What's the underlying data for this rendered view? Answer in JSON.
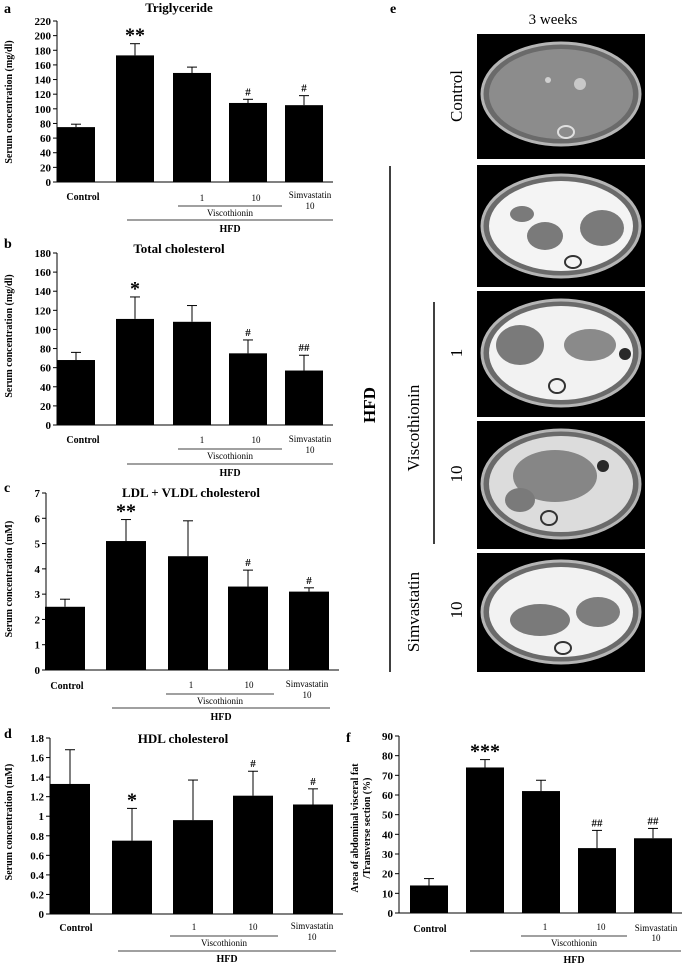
{
  "panel_letters": {
    "a": "a",
    "b": "b",
    "c": "c",
    "d": "d",
    "e": "e",
    "f": "f"
  },
  "group_labels": {
    "control": "Control",
    "dose1": "1",
    "dose10": "10",
    "simvastatin": "Simvastatin",
    "simvastatin_dose": "10",
    "viscothionin": "Viscothionin",
    "hfd": "HFD"
  },
  "colors": {
    "bar": "#000000",
    "background": "#ffffff",
    "ct_gray": "#8c8c8c",
    "ct_dark": "#2a2a2a"
  },
  "ct_panel": {
    "title": "3 weeks",
    "row_labels": {
      "control": "Control",
      "dose1": "1",
      "dose10": "10",
      "viscothionin": "Viscothionin",
      "simvastatin": "Simvastatin",
      "simvastatin_dose": "10",
      "hfd": "HFD"
    }
  },
  "chart_data": [
    {
      "id": "a",
      "type": "bar",
      "title": "Triglyceride",
      "ylabel": "Serum concentration (mg/dl)",
      "ylim": [
        0,
        220
      ],
      "yticks": [
        "0",
        "20",
        "40",
        "60",
        "80",
        "100",
        "120",
        "140",
        "160",
        "180",
        "200",
        "220"
      ],
      "categories": [
        "Control",
        "HFD",
        "Viscothionin 1",
        "Viscothionin 10",
        "Simvastatin 10"
      ],
      "values": [
        75,
        173,
        149,
        108,
        105
      ],
      "errors": [
        4,
        16,
        8,
        5,
        13
      ],
      "significance": [
        "",
        "**",
        "",
        "#",
        "#"
      ],
      "grid": false
    },
    {
      "id": "b",
      "type": "bar",
      "title": "Total cholesterol",
      "ylabel": "Serum concentration (mg/dl)",
      "ylim": [
        0,
        180
      ],
      "yticks": [
        "0",
        "20",
        "40",
        "60",
        "80",
        "100",
        "120",
        "140",
        "160",
        "180"
      ],
      "categories": [
        "Control",
        "HFD",
        "Viscothionin 1",
        "Viscothionin 10",
        "Simvastatin 10"
      ],
      "values": [
        68,
        111,
        108,
        75,
        57
      ],
      "errors": [
        8,
        23,
        17,
        14,
        16
      ],
      "significance": [
        "",
        "*",
        "",
        "#",
        "##"
      ],
      "grid": false
    },
    {
      "id": "c",
      "type": "bar",
      "title": "LDL + VLDL cholesterol",
      "ylabel": "Serum concentration (mM)",
      "ylim": [
        0,
        7
      ],
      "yticks": [
        "0",
        "1",
        "2",
        "3",
        "4",
        "5",
        "6",
        "7"
      ],
      "categories": [
        "Control",
        "HFD",
        "Viscothionin 1",
        "Viscothionin 10",
        "Simvastatin 10"
      ],
      "values": [
        2.5,
        5.1,
        4.5,
        3.3,
        3.1
      ],
      "errors": [
        0.3,
        0.85,
        1.4,
        0.65,
        0.15
      ],
      "significance": [
        "",
        "**",
        "",
        "#",
        "#"
      ],
      "grid": false
    },
    {
      "id": "d",
      "type": "bar",
      "title": "HDL cholesterol",
      "ylabel": "Serum concentration (mM)",
      "ylim": [
        0,
        1.8
      ],
      "yticks": [
        "0",
        "0.2",
        "0.4",
        "0.6",
        "0.8",
        "1",
        "1.2",
        "1.4",
        "1.6",
        "1.8"
      ],
      "categories": [
        "Control",
        "HFD",
        "Viscothionin 1",
        "Viscothionin 10",
        "Simvastatin 10"
      ],
      "values": [
        1.33,
        0.75,
        0.96,
        1.21,
        1.12
      ],
      "errors": [
        0.35,
        0.33,
        0.41,
        0.25,
        0.16
      ],
      "significance": [
        "",
        "*",
        "",
        "#",
        "#"
      ],
      "grid": false
    },
    {
      "id": "f",
      "type": "bar",
      "title": "",
      "ylabel": "Area of abdominal visceral fat /Transverse section (%)",
      "ylabel_lines": [
        "Area of abdominal visceral fat",
        "/Transverse section (%)"
      ],
      "ylim": [
        0,
        90
      ],
      "yticks": [
        "0",
        "10",
        "20",
        "30",
        "40",
        "50",
        "60",
        "70",
        "80",
        "90"
      ],
      "categories": [
        "Control",
        "HFD",
        "Viscothionin 1",
        "Viscothionin 10",
        "Simvastatin 10"
      ],
      "values": [
        14,
        74,
        62,
        33,
        38
      ],
      "errors": [
        3.5,
        4,
        5.5,
        9,
        5
      ],
      "significance": [
        "",
        "***",
        "",
        "##",
        "##"
      ],
      "grid": false
    }
  ]
}
